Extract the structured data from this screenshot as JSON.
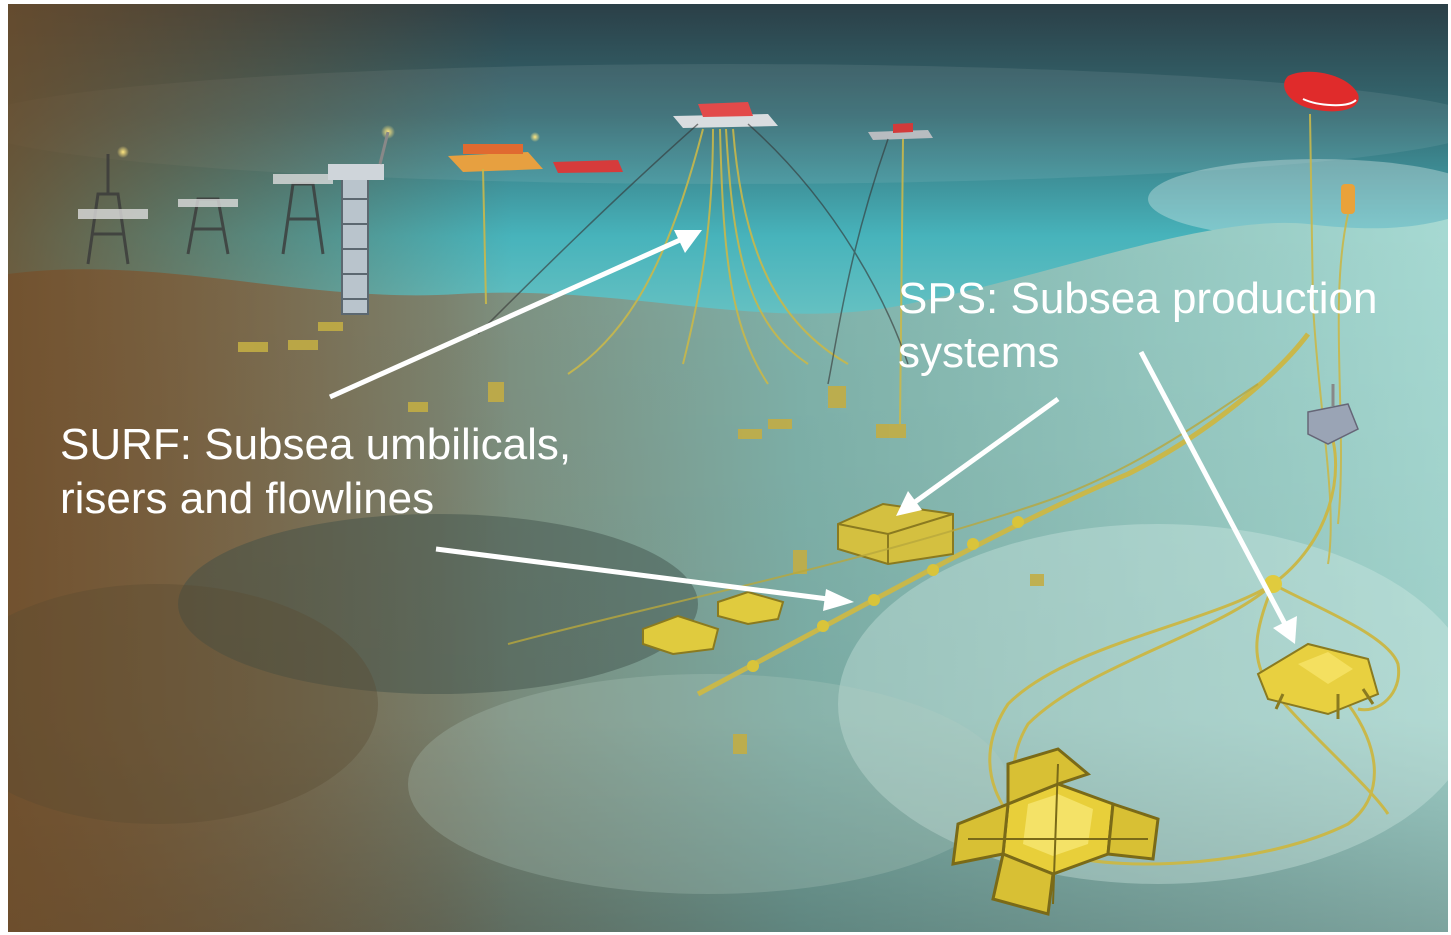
{
  "annotations": {
    "surf_label": "SURF: Subsea umbilicals,\nrisers and flowlines",
    "sps_label": "SPS: Subsea production\nsystems"
  },
  "colors": {
    "label_text": "#ffffff",
    "arrow": "#ffffff",
    "equipment": "#d9c43a",
    "vessel": "#e03030",
    "water_top": "#2a4a52",
    "water_mid": "#3fb8bf",
    "seabed_left": "#7a6646",
    "seabed_right": "#9fd0c8"
  }
}
